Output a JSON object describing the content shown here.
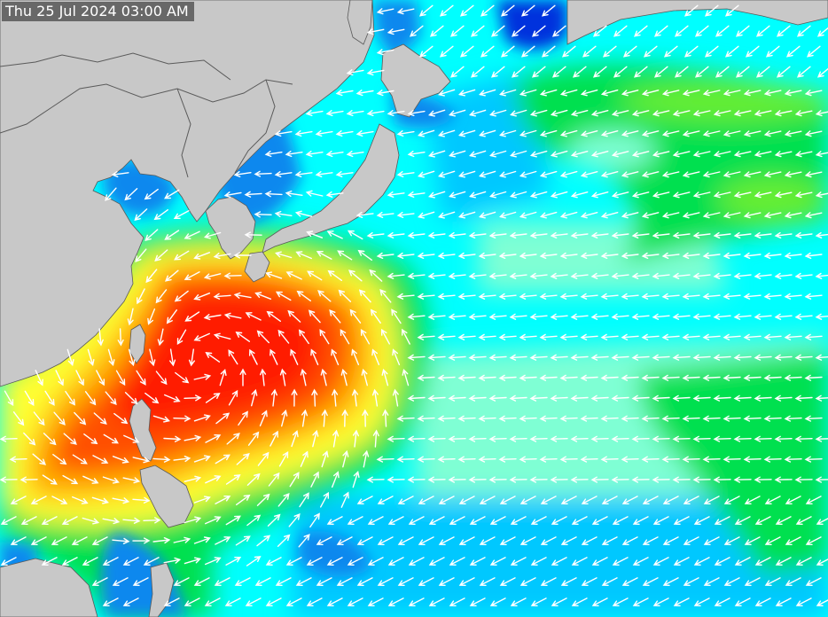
{
  "timestamp": "Thu 25 Jul 2024 03:00 AM",
  "colors": {
    "land": "#c8c8c8",
    "border": "#5a5a5a",
    "arrows": "#ffffff",
    "ocean_levels": {
      "very_low": "#0033dd",
      "low": "#0a88ee",
      "low_mid": "#00c8ff",
      "mid": "#00ffff",
      "mid_high": "#7fffd4",
      "high": "#00e050",
      "higher": "#66ee33",
      "elevated": "#ffff33",
      "strong": "#ffb000",
      "very_strong": "#ff5000",
      "peak": "#ff1a00"
    }
  },
  "icons": {
    "vector": "wind-arrow-icon"
  }
}
